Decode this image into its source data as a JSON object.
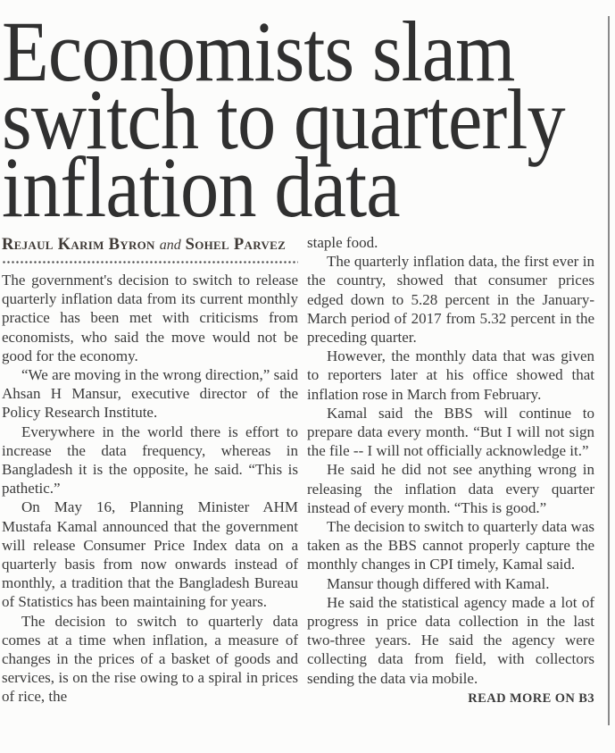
{
  "page": {
    "background_color": "#fcfcfb",
    "text_color": "#3a3a3a",
    "headline_color": "#303030",
    "divider_color": "#8a8a8a"
  },
  "article": {
    "headline": "Economists slam\nswitch to quarterly\ninflation data",
    "byline": {
      "author_1": "Rejaul Karim Byron",
      "connector": "and",
      "author_2": "Sohel Parvez"
    },
    "left_column": {
      "paragraphs": [
        "The government's decision to switch to release quarterly inflation data from its current monthly practice has been met with criticisms from economists, who said the move would not be good for the economy.",
        "“We are moving in the wrong direction,” said Ahsan H Mansur, executive director of the Policy Research Institute.",
        "Everywhere in the world there is effort to increase the data frequency, whereas in Bangladesh it is the opposite, he said. “This is pathetic.”",
        "On May 16, Planning Minister AHM Mustafa Kamal announced that the government will release Consumer Price Index data on a quarterly basis from now onwards instead of monthly, a tradition that the Bangladesh Bureau of Statistics has been maintaining for years.",
        "The decision to switch to quarterly data comes at a time when inflation, a measure of changes in the prices of a basket of goods and services, is on the rise owing to a spiral in prices of rice, the"
      ]
    },
    "right_column": {
      "paragraphs": [
        "staple food.",
        "The quarterly inflation data, the first ever in the country, showed that consumer prices edged down to 5.28 percent in the January-March period of 2017 from 5.32 percent in the preceding quarter.",
        "However, the monthly data that was given to reporters later at his office showed that inflation rose in March from February.",
        "Kamal said the BBS will continue to prepare data every month.  “But I will not sign the file -- I will not officially acknowledge it.”",
        "He said he did not see anything wrong in releasing the inflation data every quarter instead of every month. “This is good.”",
        "The decision to switch to quarterly data was taken as the BBS cannot properly capture the monthly changes in CPI timely, Kamal said.",
        "Mansur though differed with Kamal.",
        "He said the statistical agency made a lot of progress in price data collection in the last two-three years. He said the agency were collecting data from field, with collectors sending the data via mobile."
      ],
      "read_more": "READ MORE ON B3"
    }
  }
}
